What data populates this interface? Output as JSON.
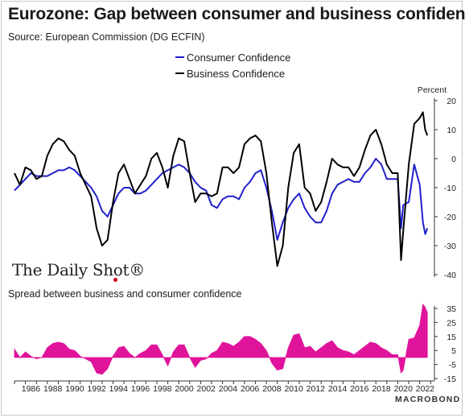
{
  "title": "Eurozone: Gap between consumer and business confidence",
  "source": "Source: European Commission (DG ECFIN)",
  "logo_text": "The Daily Shot®",
  "brand_text": "MACROBOND",
  "colors": {
    "consumer": "#1f1fcc",
    "business": "#000000",
    "spread": "#e0139b"
  },
  "chart_data": [
    {
      "type": "line",
      "unit_label": "Percent",
      "ylim": [
        -40,
        20
      ],
      "yticks": [
        20,
        10,
        0,
        -10,
        -20,
        -30,
        -40
      ],
      "xlim": [
        1985.0,
        2023.2
      ],
      "grid": false,
      "legend_position": "top-center",
      "series": [
        {
          "name": "Consumer Confidence",
          "color": "#1f1fcc",
          "points": [
            [
              1985.0,
              -11
            ],
            [
              1985.5,
              -9
            ],
            [
              1986.0,
              -7
            ],
            [
              1986.5,
              -5
            ],
            [
              1987.0,
              -6
            ],
            [
              1987.5,
              -6
            ],
            [
              1988.0,
              -6
            ],
            [
              1988.5,
              -5
            ],
            [
              1989.0,
              -4
            ],
            [
              1989.5,
              -4
            ],
            [
              1990.0,
              -3
            ],
            [
              1990.5,
              -4
            ],
            [
              1991.0,
              -6
            ],
            [
              1991.5,
              -8
            ],
            [
              1992.0,
              -10
            ],
            [
              1992.5,
              -13
            ],
            [
              1993.0,
              -18
            ],
            [
              1993.5,
              -20
            ],
            [
              1994.0,
              -16
            ],
            [
              1994.5,
              -12
            ],
            [
              1995.0,
              -10
            ],
            [
              1995.5,
              -10
            ],
            [
              1996.0,
              -12
            ],
            [
              1996.5,
              -12
            ],
            [
              1997.0,
              -11
            ],
            [
              1997.5,
              -9
            ],
            [
              1998.0,
              -7
            ],
            [
              1998.5,
              -5
            ],
            [
              1999.0,
              -4
            ],
            [
              1999.5,
              -3
            ],
            [
              2000.0,
              -2
            ],
            [
              2000.5,
              -3
            ],
            [
              2001.0,
              -5
            ],
            [
              2001.5,
              -8
            ],
            [
              2002.0,
              -10
            ],
            [
              2002.5,
              -11
            ],
            [
              2003.0,
              -16
            ],
            [
              2003.5,
              -17
            ],
            [
              2004.0,
              -14
            ],
            [
              2004.5,
              -13
            ],
            [
              2005.0,
              -13
            ],
            [
              2005.5,
              -14
            ],
            [
              2006.0,
              -10
            ],
            [
              2006.5,
              -8
            ],
            [
              2007.0,
              -5
            ],
            [
              2007.5,
              -4
            ],
            [
              2008.0,
              -10
            ],
            [
              2008.5,
              -18
            ],
            [
              2009.0,
              -28
            ],
            [
              2009.5,
              -22
            ],
            [
              2010.0,
              -17
            ],
            [
              2010.5,
              -14
            ],
            [
              2011.0,
              -12
            ],
            [
              2011.5,
              -17
            ],
            [
              2012.0,
              -20
            ],
            [
              2012.5,
              -22
            ],
            [
              2013.0,
              -22
            ],
            [
              2013.5,
              -18
            ],
            [
              2014.0,
              -12
            ],
            [
              2014.5,
              -9
            ],
            [
              2015.0,
              -8
            ],
            [
              2015.5,
              -7
            ],
            [
              2016.0,
              -8
            ],
            [
              2016.5,
              -8
            ],
            [
              2017.0,
              -5
            ],
            [
              2017.5,
              -3
            ],
            [
              2018.0,
              0
            ],
            [
              2018.5,
              -2
            ],
            [
              2019.0,
              -7
            ],
            [
              2019.5,
              -7
            ],
            [
              2020.0,
              -7
            ],
            [
              2020.3,
              -24
            ],
            [
              2020.5,
              -16
            ],
            [
              2021.0,
              -15
            ],
            [
              2021.5,
              -2
            ],
            [
              2022.0,
              -9
            ],
            [
              2022.3,
              -22
            ],
            [
              2022.5,
              -26
            ],
            [
              2022.7,
              -24
            ]
          ]
        },
        {
          "name": "Business Confidence",
          "color": "#000000",
          "points": [
            [
              1985.0,
              -5
            ],
            [
              1985.5,
              -9
            ],
            [
              1986.0,
              -3
            ],
            [
              1986.5,
              -4
            ],
            [
              1987.0,
              -7
            ],
            [
              1987.5,
              -6
            ],
            [
              1988.0,
              1
            ],
            [
              1988.5,
              5
            ],
            [
              1989.0,
              7
            ],
            [
              1989.5,
              6
            ],
            [
              1990.0,
              3
            ],
            [
              1990.5,
              1
            ],
            [
              1991.0,
              -5
            ],
            [
              1991.5,
              -9
            ],
            [
              1992.0,
              -13
            ],
            [
              1992.5,
              -24
            ],
            [
              1993.0,
              -30
            ],
            [
              1993.5,
              -28
            ],
            [
              1994.0,
              -15
            ],
            [
              1994.5,
              -5
            ],
            [
              1995.0,
              -2
            ],
            [
              1995.5,
              -7
            ],
            [
              1996.0,
              -12
            ],
            [
              1996.5,
              -9
            ],
            [
              1997.0,
              -6
            ],
            [
              1997.5,
              0
            ],
            [
              1998.0,
              2
            ],
            [
              1998.5,
              -3
            ],
            [
              1999.0,
              -10
            ],
            [
              1999.5,
              1
            ],
            [
              2000.0,
              7
            ],
            [
              2000.5,
              6
            ],
            [
              2001.0,
              -5
            ],
            [
              2001.5,
              -15
            ],
            [
              2002.0,
              -12
            ],
            [
              2002.5,
              -12
            ],
            [
              2003.0,
              -13
            ],
            [
              2003.5,
              -12
            ],
            [
              2004.0,
              -3
            ],
            [
              2004.5,
              -3
            ],
            [
              2005.0,
              -5
            ],
            [
              2005.5,
              -3
            ],
            [
              2006.0,
              5
            ],
            [
              2006.5,
              7
            ],
            [
              2007.0,
              8
            ],
            [
              2007.5,
              6
            ],
            [
              2008.0,
              -5
            ],
            [
              2008.5,
              -22
            ],
            [
              2009.0,
              -37
            ],
            [
              2009.5,
              -30
            ],
            [
              2010.0,
              -10
            ],
            [
              2010.5,
              2
            ],
            [
              2011.0,
              5
            ],
            [
              2011.5,
              -10
            ],
            [
              2012.0,
              -12
            ],
            [
              2012.5,
              -18
            ],
            [
              2013.0,
              -15
            ],
            [
              2013.5,
              -8
            ],
            [
              2014.0,
              0
            ],
            [
              2014.5,
              -2
            ],
            [
              2015.0,
              -3
            ],
            [
              2015.5,
              -3
            ],
            [
              2016.0,
              -6
            ],
            [
              2016.5,
              -3
            ],
            [
              2017.0,
              3
            ],
            [
              2017.5,
              8
            ],
            [
              2018.0,
              10
            ],
            [
              2018.5,
              5
            ],
            [
              2019.0,
              -2
            ],
            [
              2019.5,
              -5
            ],
            [
              2020.0,
              -5
            ],
            [
              2020.3,
              -35
            ],
            [
              2020.5,
              -25
            ],
            [
              2021.0,
              -2
            ],
            [
              2021.5,
              12
            ],
            [
              2022.0,
              14
            ],
            [
              2022.3,
              16
            ],
            [
              2022.5,
              10
            ],
            [
              2022.7,
              8
            ]
          ]
        }
      ]
    },
    {
      "type": "area",
      "title": "Spread between business and consumer confidence",
      "ylim": [
        -15,
        35
      ],
      "yticks": [
        35,
        25,
        15,
        5,
        -5,
        -15
      ],
      "xlim": [
        1985.0,
        2023.2
      ],
      "xticks": [
        1986,
        1988,
        1990,
        1992,
        1994,
        1996,
        1998,
        2000,
        2002,
        2004,
        2006,
        2008,
        2010,
        2012,
        2014,
        2016,
        2018,
        2020,
        2022
      ],
      "grid": false,
      "series": [
        {
          "name": "Spread between business and consumer confidence",
          "color": "#e0139b",
          "points": [
            [
              1985.0,
              6
            ],
            [
              1985.5,
              0
            ],
            [
              1986.0,
              4
            ],
            [
              1986.5,
              1
            ],
            [
              1987.0,
              -1
            ],
            [
              1987.5,
              0
            ],
            [
              1988.0,
              7
            ],
            [
              1988.5,
              10
            ],
            [
              1989.0,
              11
            ],
            [
              1989.5,
              10
            ],
            [
              1990.0,
              6
            ],
            [
              1990.5,
              5
            ],
            [
              1991.0,
              1
            ],
            [
              1991.5,
              -1
            ],
            [
              1992.0,
              -3
            ],
            [
              1992.5,
              -11
            ],
            [
              1993.0,
              -12
            ],
            [
              1993.5,
              -8
            ],
            [
              1994.0,
              1
            ],
            [
              1994.5,
              7
            ],
            [
              1995.0,
              8
            ],
            [
              1995.5,
              3
            ],
            [
              1996.0,
              0
            ],
            [
              1996.5,
              3
            ],
            [
              1997.0,
              5
            ],
            [
              1997.5,
              9
            ],
            [
              1998.0,
              9
            ],
            [
              1998.5,
              2
            ],
            [
              1999.0,
              -6
            ],
            [
              1999.5,
              4
            ],
            [
              2000.0,
              9
            ],
            [
              2000.5,
              9
            ],
            [
              2001.0,
              0
            ],
            [
              2001.5,
              -7
            ],
            [
              2002.0,
              -2
            ],
            [
              2002.5,
              -1
            ],
            [
              2003.0,
              3
            ],
            [
              2003.5,
              5
            ],
            [
              2004.0,
              11
            ],
            [
              2004.5,
              10
            ],
            [
              2005.0,
              8
            ],
            [
              2005.5,
              11
            ],
            [
              2006.0,
              15
            ],
            [
              2006.5,
              15
            ],
            [
              2007.0,
              13
            ],
            [
              2007.5,
              10
            ],
            [
              2008.0,
              5
            ],
            [
              2008.5,
              -4
            ],
            [
              2009.0,
              -9
            ],
            [
              2009.5,
              -8
            ],
            [
              2010.0,
              7
            ],
            [
              2010.5,
              16
            ],
            [
              2011.0,
              17
            ],
            [
              2011.5,
              7
            ],
            [
              2012.0,
              8
            ],
            [
              2012.5,
              4
            ],
            [
              2013.0,
              7
            ],
            [
              2013.5,
              10
            ],
            [
              2014.0,
              12
            ],
            [
              2014.5,
              7
            ],
            [
              2015.0,
              5
            ],
            [
              2015.5,
              4
            ],
            [
              2016.0,
              2
            ],
            [
              2016.5,
              5
            ],
            [
              2017.0,
              8
            ],
            [
              2017.5,
              11
            ],
            [
              2018.0,
              10
            ],
            [
              2018.5,
              7
            ],
            [
              2019.0,
              5
            ],
            [
              2019.5,
              2
            ],
            [
              2020.0,
              2
            ],
            [
              2020.3,
              -11
            ],
            [
              2020.5,
              -9
            ],
            [
              2021.0,
              13
            ],
            [
              2021.5,
              14
            ],
            [
              2022.0,
              23
            ],
            [
              2022.3,
              38
            ],
            [
              2022.5,
              36
            ],
            [
              2022.7,
              32
            ]
          ]
        }
      ]
    }
  ]
}
